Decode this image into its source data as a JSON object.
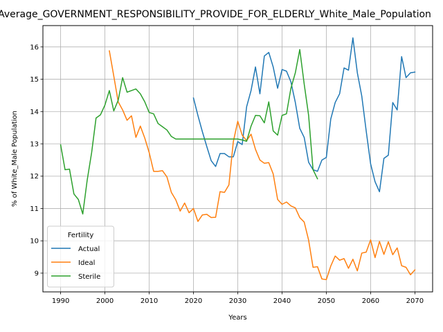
{
  "chart_data": {
    "type": "line",
    "title": "Average_GOVERNMENT_RESPONSIBILITY_PROVIDE_FOR_ELDERLY_White_Male_Population",
    "xlabel": "Years",
    "ylabel": "% of White_Male Population",
    "xlim": [
      1986,
      2074
    ],
    "ylim": [
      8.42,
      16.66
    ],
    "xticks": [
      1990,
      2000,
      2010,
      2020,
      2030,
      2040,
      2050,
      2060,
      2070
    ],
    "xtick_labels": [
      "1990",
      "2000",
      "2010",
      "2020",
      "2030",
      "2040",
      "2050",
      "2060",
      "2070"
    ],
    "yticks": [
      9,
      10,
      11,
      12,
      13,
      14,
      15,
      16
    ],
    "ytick_labels": [
      "9",
      "10",
      "11",
      "12",
      "13",
      "14",
      "15",
      "16"
    ],
    "grid": true,
    "legend": {
      "title": "Fertility",
      "placement": "lower-left"
    },
    "series": [
      {
        "name": "Actual",
        "color": "#1f77b4",
        "x": [
          2020,
          2021,
          2022,
          2023,
          2024,
          2025,
          2026,
          2027,
          2028,
          2029,
          2030,
          2031,
          2032,
          2033,
          2034,
          2035,
          2036,
          2037,
          2038,
          2039,
          2040,
          2041,
          2042,
          2043,
          2044,
          2045,
          2046,
          2047,
          2048,
          2049,
          2050,
          2051,
          2052,
          2053,
          2054,
          2055,
          2056,
          2057,
          2058,
          2059,
          2060,
          2061,
          2062,
          2063,
          2064,
          2065,
          2066,
          2067,
          2068,
          2069,
          2070
        ],
        "values": [
          14.42,
          13.88,
          13.38,
          12.92,
          12.48,
          12.3,
          12.7,
          12.7,
          12.6,
          12.6,
          13.07,
          12.98,
          14.15,
          14.65,
          15.38,
          14.55,
          15.72,
          15.83,
          15.38,
          14.72,
          15.3,
          15.25,
          14.92,
          14.28,
          13.48,
          13.2,
          12.43,
          12.2,
          12.15,
          12.5,
          12.58,
          13.77,
          14.28,
          14.55,
          15.35,
          15.28,
          16.28,
          15.2,
          14.48,
          13.4,
          12.38,
          11.83,
          11.52,
          12.55,
          12.65,
          14.28,
          14.05,
          15.7,
          15.05,
          15.2,
          15.22
        ]
      },
      {
        "name": "Ideal",
        "color": "#ff7f0e",
        "x": [
          2001,
          2002,
          2003,
          2004,
          2005,
          2006,
          2007,
          2008,
          2009,
          2010,
          2011,
          2012,
          2013,
          2014,
          2015,
          2016,
          2017,
          2018,
          2019,
          2020,
          2021,
          2022,
          2023,
          2024,
          2025,
          2026,
          2027,
          2028,
          2029,
          2030,
          2031,
          2032,
          2033,
          2034,
          2035,
          2036,
          2037,
          2038,
          2039,
          2040,
          2041,
          2042,
          2043,
          2044,
          2045,
          2046,
          2047,
          2048,
          2049,
          2050,
          2051,
          2052,
          2053,
          2054,
          2055,
          2056,
          2057,
          2058,
          2059,
          2060,
          2061,
          2062,
          2063,
          2064,
          2065,
          2066,
          2067,
          2068,
          2069,
          2070
        ],
        "values": [
          15.88,
          15.1,
          14.3,
          14.05,
          13.73,
          13.87,
          13.2,
          13.55,
          13.18,
          12.73,
          12.15,
          12.15,
          12.17,
          11.98,
          11.5,
          11.27,
          10.92,
          11.17,
          10.87,
          11.0,
          10.6,
          10.8,
          10.82,
          10.72,
          10.73,
          11.52,
          11.5,
          11.73,
          13.07,
          13.7,
          13.27,
          13.1,
          13.3,
          12.83,
          12.5,
          12.4,
          12.42,
          12.07,
          11.28,
          11.13,
          11.2,
          11.08,
          11.02,
          10.72,
          10.58,
          10.02,
          9.18,
          9.2,
          8.82,
          8.8,
          9.22,
          9.53,
          9.4,
          9.45,
          9.15,
          9.43,
          9.07,
          9.62,
          9.65,
          10.03,
          9.48,
          9.98,
          9.58,
          9.97,
          9.57,
          9.78,
          9.23,
          9.18,
          8.95,
          9.1
        ]
      },
      {
        "name": "Sterile",
        "color": "#2ca02c",
        "x": [
          1990,
          1991,
          1992,
          1993,
          1994,
          1995,
          1996,
          1997,
          1998,
          1999,
          2000,
          2001,
          2002,
          2003,
          2004,
          2005,
          2006,
          2007,
          2008,
          2009,
          2010,
          2011,
          2012,
          2013,
          2014,
          2015,
          2016,
          2017,
          2018,
          2019,
          2020,
          2021,
          2022,
          2023,
          2024,
          2025,
          2026,
          2027,
          2028,
          2029,
          2030,
          2031,
          2032,
          2033,
          2034,
          2035,
          2036,
          2037,
          2038,
          2039,
          2040,
          2041,
          2042,
          2043,
          2044,
          2045,
          2046,
          2047,
          2048
        ],
        "values": [
          12.97,
          12.2,
          12.22,
          11.45,
          11.28,
          10.83,
          11.88,
          12.73,
          13.8,
          13.9,
          14.2,
          14.65,
          14.02,
          14.35,
          15.05,
          14.6,
          14.65,
          14.7,
          14.55,
          14.3,
          13.97,
          13.93,
          13.63,
          13.53,
          13.43,
          13.23,
          13.15,
          13.15,
          13.15,
          13.15,
          13.15,
          13.15,
          13.15,
          13.15,
          13.15,
          13.15,
          13.15,
          13.15,
          13.15,
          13.15,
          13.15,
          13.12,
          13.08,
          13.55,
          13.88,
          13.87,
          13.65,
          14.3,
          13.4,
          13.27,
          13.88,
          13.93,
          14.72,
          15.2,
          15.92,
          14.85,
          13.88,
          12.2,
          11.92
        ]
      }
    ]
  }
}
